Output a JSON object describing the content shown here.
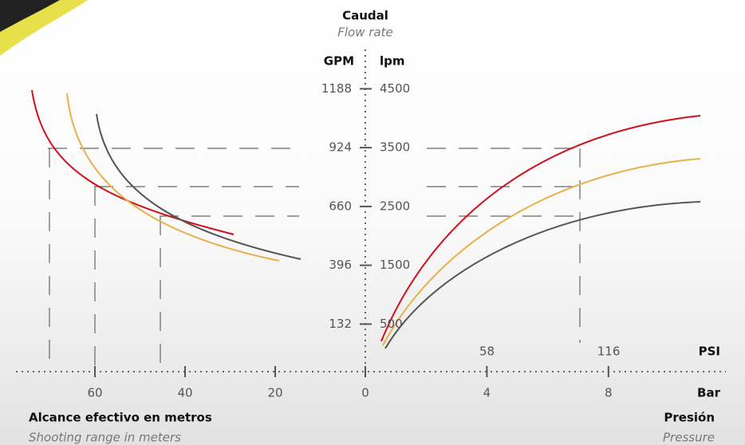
{
  "title": "Caudal",
  "subtitle": "Flow rate",
  "left_unit": "GPM",
  "right_unit": "lpm",
  "gpm_ticks": [
    132,
    396,
    660,
    924,
    1188
  ],
  "lpm_ticks": [
    500,
    1500,
    2500,
    3500,
    4500
  ],
  "range_ticks": [
    60,
    40,
    20
  ],
  "bar_ticks": [
    0,
    4,
    8
  ],
  "psi_ticks": [
    58,
    116
  ],
  "psi_label": "PSI",
  "bar_label": "Bar",
  "range_title": "Alcance efectivo en metros",
  "range_subtitle": "Shooting range in meters",
  "pressure_title": "Presión",
  "pressure_subtitle": "Pressure"
}
